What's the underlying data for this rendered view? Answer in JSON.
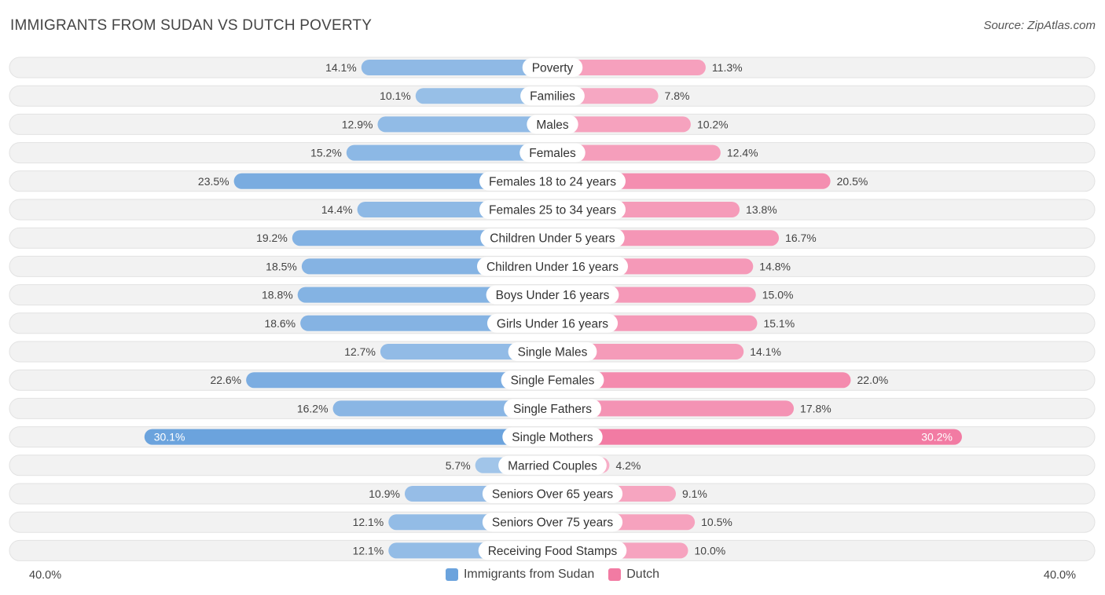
{
  "header": {
    "title": "IMMIGRANTS FROM SUDAN VS DUTCH POVERTY",
    "source": "Source: ZipAtlas.com"
  },
  "axis": {
    "left_label": "40.0%",
    "right_label": "40.0%"
  },
  "legend": {
    "items": [
      {
        "label": "Immigrants from Sudan",
        "color": "#6ba3dd"
      },
      {
        "label": "Dutch",
        "color": "#f27ba3"
      }
    ]
  },
  "chart_data": {
    "type": "bar",
    "orientation": "horizontal-diverging",
    "title": "IMMIGRANTS FROM SUDAN VS DUTCH POVERTY",
    "xlim": [
      -40,
      40
    ],
    "unit": "%",
    "categories": [
      "Poverty",
      "Families",
      "Males",
      "Females",
      "Females 18 to 24 years",
      "Females 25 to 34 years",
      "Children Under 5 years",
      "Children Under 16 years",
      "Boys Under 16 years",
      "Girls Under 16 years",
      "Single Males",
      "Single Females",
      "Single Fathers",
      "Single Mothers",
      "Married Couples",
      "Seniors Over 65 years",
      "Seniors Over 75 years",
      "Receiving Food Stamps"
    ],
    "series": [
      {
        "name": "Immigrants from Sudan",
        "color": "#6ba3dd",
        "values": [
          14.1,
          10.1,
          12.9,
          15.2,
          23.5,
          14.4,
          19.2,
          18.5,
          18.8,
          18.6,
          12.7,
          22.6,
          16.2,
          30.1,
          5.7,
          10.9,
          12.1,
          12.1
        ],
        "labels": [
          "14.1%",
          "10.1%",
          "12.9%",
          "15.2%",
          "23.5%",
          "14.4%",
          "19.2%",
          "18.5%",
          "18.8%",
          "18.6%",
          "12.7%",
          "22.6%",
          "16.2%",
          "30.1%",
          "5.7%",
          "10.9%",
          "12.1%",
          "12.1%"
        ]
      },
      {
        "name": "Dutch",
        "color": "#f27ba3",
        "values": [
          11.3,
          7.8,
          10.2,
          12.4,
          20.5,
          13.8,
          16.7,
          14.8,
          15.0,
          15.1,
          14.1,
          22.0,
          17.8,
          30.2,
          4.2,
          9.1,
          10.5,
          10.0
        ],
        "labels": [
          "11.3%",
          "7.8%",
          "10.2%",
          "12.4%",
          "20.5%",
          "13.8%",
          "16.7%",
          "14.8%",
          "15.0%",
          "15.1%",
          "14.1%",
          "22.0%",
          "17.8%",
          "30.2%",
          "4.2%",
          "9.1%",
          "10.5%",
          "10.0%"
        ]
      }
    ]
  }
}
